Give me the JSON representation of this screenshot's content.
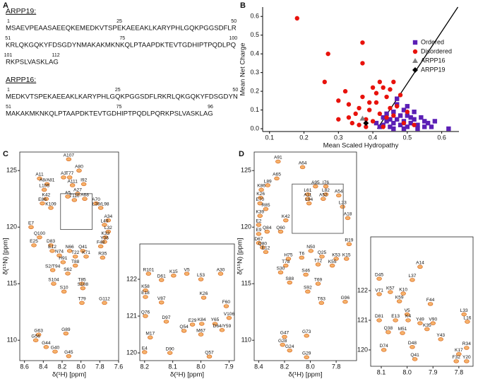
{
  "panel_a": {
    "label": "A",
    "proteins": [
      {
        "name": "ARPP19:",
        "lines": [
          {
            "sequence": "MSAEVPEAASAEEQKEMEDKVTSPEKAEEAKLKARYPHLGQKPGGSDFLR",
            "markers": [
              1,
              25,
              50
            ]
          },
          {
            "sequence": "KRLQKGQKYFDSGDYNMAKAKMKNKQLPTAAPDKTEVTGDHIPTPQDLPQ",
            "markers": [
              51,
              75,
              100
            ]
          },
          {
            "sequence": "RKPSLVASKLAG",
            "markers": [
              101,
              112
            ]
          }
        ]
      },
      {
        "name": "ARPP16:",
        "lines": [
          {
            "sequence": "MEDKVTSPEKAEEAKLKARYPHLGQKPGGSDFLRKRLQKGQKYFDSGDYN",
            "markers": [
              1,
              25,
              50
            ]
          },
          {
            "sequence": "MAKAKMKNKQLPTAAPDKTEVTGDHIPTPQDLPQRKPSLVASKLAG",
            "markers": [
              51,
              75,
              96
            ]
          }
        ]
      }
    ]
  },
  "chart_data": [
    {
      "type": "scatter",
      "label": "B",
      "x_label": "Mean Scaled Hydropathy",
      "y_label": "Mean Net Charge",
      "xlim": [
        0.08,
        0.65
      ],
      "ylim": [
        -0.015,
        0.65
      ],
      "xticks": [
        0.1,
        0.2,
        0.3,
        0.4,
        0.5,
        0.6
      ],
      "yticks": [
        {
          "value": 0,
          "label": "0.0"
        },
        0.1,
        0.2,
        0.3,
        0.4,
        0.5,
        0.6
      ],
      "legend": "right",
      "boundary_line": {
        "x": [
          0.413,
          0.647
        ],
        "y": [
          0,
          0.65
        ],
        "color": "#000000"
      },
      "series": [
        {
          "name": "Ordered",
          "color": "#5b1fb5",
          "marker": "square",
          "x": [
            0.43,
            0.44,
            0.45,
            0.46,
            0.47,
            0.48,
            0.49,
            0.5,
            0.51,
            0.52,
            0.53,
            0.54,
            0.55,
            0.56,
            0.58,
            0.62,
            0.44,
            0.46,
            0.48,
            0.5,
            0.52,
            0.47,
            0.49,
            0.51,
            0.45,
            0.42,
            0.53,
            0.57,
            0.49,
            0.46,
            0.41,
            0.47,
            0.5,
            0.43,
            0.55
          ],
          "y": [
            0.02,
            0.04,
            0.01,
            0.03,
            0.05,
            0.02,
            0.04,
            0.01,
            0.03,
            0.05,
            0.02,
            0.06,
            0.01,
            0.03,
            0.04,
            0.0,
            0.08,
            0.09,
            0.07,
            0.07,
            0.09,
            0.13,
            0.1,
            0.06,
            0.05,
            0.01,
            0.0,
            0.01,
            0.0,
            0.0,
            0.03,
            0.16,
            0.12,
            0.06,
            0.04
          ]
        },
        {
          "name": "Disordered",
          "color": "#e8120c",
          "marker": "circle",
          "x": [
            0.18,
            0.27,
            0.26,
            0.37,
            0.37,
            0.3,
            0.32,
            0.33,
            0.35,
            0.36,
            0.34,
            0.38,
            0.39,
            0.4,
            0.41,
            0.42,
            0.43,
            0.44,
            0.45,
            0.46,
            0.4,
            0.42,
            0.43,
            0.44,
            0.45,
            0.47,
            0.48,
            0.49,
            0.5,
            0.37,
            0.38,
            0.36,
            0.41,
            0.46,
            0.33,
            0.39,
            0.52,
            0.3
          ],
          "y": [
            0.59,
            0.4,
            0.25,
            0.35,
            0.46,
            0.15,
            0.2,
            0.13,
            0.08,
            0.11,
            0.03,
            0.05,
            0.1,
            0.22,
            0.14,
            0.25,
            0.22,
            0.17,
            0.21,
            0.25,
            0.04,
            0.08,
            0.01,
            0.06,
            0.11,
            0.12,
            0.18,
            0.03,
            0.09,
            0.17,
            0.01,
            0.02,
            0.19,
            0.07,
            0.06,
            0.14,
            0.02,
            0.05
          ]
        },
        {
          "name": "ARPP16",
          "color": "#808080",
          "marker": "triangle",
          "x": [
            0.37
          ],
          "y": [
            0.055
          ]
        },
        {
          "name": "ARPP19",
          "color": "#000000",
          "marker": "diamond",
          "x": [
            0.38
          ],
          "y": [
            0.03
          ]
        }
      ]
    },
    {
      "type": "spectrum",
      "label": "C",
      "x_label": "δ(¹H) [ppm]",
      "y_label": "δ(¹⁵N) [ppm]",
      "color": "#f5b26b",
      "xlim": [
        8.65,
        7.6
      ],
      "ylim": [
        108.2,
        126.64
      ],
      "xticks": [
        8.6,
        8.4,
        8.2,
        {
          "value": 8,
          "label": "8.0"
        },
        7.8,
        7.6
      ],
      "yticks": [
        110,
        115,
        120,
        125
      ],
      "peaks": {
        "labels": [
          "G45",
          "G40",
          "G44",
          "G56",
          "G63",
          "G89",
          "T79",
          "G112",
          "S10",
          "S108",
          "T85",
          "S104",
          "S62",
          "S2/T94",
          "T88",
          "H91",
          "T22",
          "K71",
          "R35",
          "N74",
          "E12",
          "N66",
          "Q41",
          "F48",
          "E25",
          "D83",
          "Y36",
          "K33",
          "Q100",
          "E7",
          "L32",
          "L49",
          "A34",
          "K109",
          "L39/L98",
          "E86",
          "A70",
          "K42",
          "T110",
          "A5",
          "A68",
          "A27",
          "L105",
          "A8/A81",
          "A111",
          "I92",
          "A11",
          "A3",
          "T77",
          "A80",
          "A107"
        ],
        "x": [
          8.13,
          8.275,
          8.37,
          8.48,
          8.45,
          8.16,
          7.99,
          7.75,
          8.18,
          7.98,
          7.99,
          8.29,
          8.14,
          8.3,
          8.06,
          8.19,
          8.06,
          7.945,
          7.77,
          8.23,
          8.305,
          8.12,
          7.98,
          7.79,
          8.5,
          8.32,
          7.75,
          7.74,
          8.44,
          8.53,
          7.71,
          7.75,
          7.71,
          8.32,
          7.79,
          8.41,
          7.84,
          8.37,
          8.07,
          8.14,
          7.96,
          8.035,
          8.39,
          8.36,
          8.09,
          7.97,
          8.44,
          8.185,
          8.12,
          8.02,
          8.13
        ],
        "y": [
          108.6,
          109.0,
          109.4,
          110.0,
          110.5,
          110.6,
          113.3,
          113.3,
          114.3,
          114.6,
          115.0,
          115.0,
          115.9,
          116.2,
          116.6,
          116.9,
          117.4,
          117.4,
          117.3,
          117.5,
          117.9,
          117.9,
          117.9,
          118.3,
          118.4,
          118.4,
          118.7,
          119.1,
          119.1,
          120.0,
          119.6,
          120.2,
          120.6,
          121.7,
          121.7,
          122.1,
          122.1,
          122.5,
          122.4,
          122.7,
          122.5,
          122.95,
          123.3,
          123.8,
          123.7,
          123.8,
          124.3,
          124.4,
          124.4,
          125.0,
          126.0
        ]
      }
    },
    {
      "type": "spectrum",
      "x_label": "δ(¹H) [ppm]",
      "color": "#f5b26b",
      "xlim": [
        8.217,
        7.881
      ],
      "ylim": [
        119.79,
        122.96
      ],
      "xticks": [
        8.2,
        8.1,
        {
          "value": 8,
          "label": "8.0"
        },
        7.9
      ],
      "yticks": [
        120,
        121,
        122
      ],
      "peaks": {
        "labels": [
          "E4",
          "D90",
          "Q57",
          "M17",
          "Q54",
          "M67",
          "D64/Y59",
          "Q76",
          "D97",
          "E29",
          "K84",
          "Y65",
          "V106",
          "F60",
          "V87",
          "E18",
          "K26",
          "K58",
          "D61",
          "K15",
          "L53",
          "R101",
          "V5",
          "A30"
        ],
        "x": [
          8.2,
          8.11,
          7.97,
          8.18,
          8.06,
          8.0,
          7.925,
          8.197,
          8.123,
          8.03,
          7.997,
          7.95,
          7.9,
          7.91,
          8.14,
          8.197,
          7.99,
          8.197,
          8.14,
          8.097,
          8.0,
          8.186,
          8.05,
          7.93
        ],
        "y": [
          120.02,
          120.0,
          119.9,
          120.42,
          120.6,
          120.5,
          120.62,
          121.0,
          120.85,
          120.77,
          120.79,
          120.79,
          120.95,
          121.27,
          121.37,
          121.52,
          121.5,
          121.7,
          121.98,
          122.1,
          122.0,
          122.15,
          122.15,
          122.15
        ]
      }
    },
    {
      "type": "spectrum",
      "label": "D",
      "x_label": "δ(¹H) [ppm]",
      "y_label": "δ(¹⁵N) [ppm]",
      "color": "#f5b26b",
      "xlim": [
        8.435,
        7.642
      ],
      "ylim": [
        108.2,
        126.64
      ],
      "xticks": [
        8.4,
        8.2,
        {
          "value": 8,
          "label": "8.0"
        },
        7.8
      ],
      "yticks": [
        110,
        115,
        120,
        125
      ],
      "peaks": {
        "labels": [
          "G29",
          "G24",
          "G28",
          "G47",
          "G73",
          "T63",
          "G96",
          "S92",
          "S88",
          "T69",
          "S46",
          "S30",
          "T72",
          "T78",
          "K55",
          "H75",
          "T6",
          "K53",
          "K15",
          "Q25",
          "E12",
          "N50",
          "Q80",
          "D67",
          "R19",
          "E9",
          "Q84",
          "Q60",
          "E2",
          "K39",
          "A18",
          "R85",
          "L23",
          "K42",
          "L94",
          "E70",
          "A11",
          "A52",
          "K26",
          "L61",
          "L82",
          "A54",
          "K86",
          "I76",
          "L89",
          "A95",
          "A65",
          "A64",
          "A91"
        ],
        "x": [
          8.029,
          8.16,
          8.215,
          8.2,
          8.029,
          7.914,
          7.73,
          8.02,
          8.16,
          7.94,
          8.035,
          8.23,
          7.94,
          8.19,
          7.83,
          8.17,
          8.067,
          7.8,
          7.72,
          7.91,
          8.345,
          7.996,
          8.37,
          8.4,
          7.7,
          8.4,
          8.335,
          8.23,
          8.4,
          8.39,
          7.71,
          8.345,
          7.75,
          8.19,
          8.01,
          8.39,
          8.02,
          7.9,
          8.385,
          8.02,
          7.88,
          7.78,
          8.38,
          7.88,
          8.33,
          7.96,
          8.26,
          8.06,
          8.25
        ],
        "y": [
          108.5,
          109.1,
          109.6,
          110.3,
          110.4,
          113.3,
          113.4,
          114.3,
          115.1,
          115.0,
          115.8,
          116.0,
          116.7,
          116.6,
          116.6,
          117.2,
          117.3,
          117.2,
          117.2,
          117.4,
          117.8,
          117.9,
          118.2,
          118.6,
          118.5,
          119.4,
          119.6,
          119.6,
          120.2,
          121.0,
          120.8,
          121.6,
          121.8,
          120.6,
          122.1,
          122.1,
          122.5,
          122.5,
          122.6,
          122.9,
          122.9,
          122.8,
          123.3,
          123.6,
          123.7,
          123.6,
          124.3,
          125.3,
          125.8
        ]
      }
    },
    {
      "type": "spectrum",
      "color": "#f5b26b",
      "xlim": [
        8.141,
        7.745
      ],
      "ylim": [
        119.45,
        123.81
      ],
      "xticks": [
        8.1,
        {
          "value": 8,
          "label": "8.0"
        },
        7.9,
        7.8
      ],
      "yticks": [
        120,
        121,
        122
      ],
      "peaks": {
        "labels": [
          "F32",
          "Y20",
          "Q41",
          "K17",
          "D74",
          "D48",
          "R34",
          "Y43",
          "Q38",
          "M51",
          "K35",
          "Y49",
          "V90",
          "L16",
          "D81",
          "E13",
          "K4",
          "V5",
          "L33",
          "F44",
          "K59",
          "V71",
          "K57",
          "K10",
          "D45",
          "L37",
          "A14"
        ],
        "x": [
          7.81,
          7.77,
          7.97,
          7.8,
          8.09,
          7.98,
          7.77,
          7.87,
          8.073,
          8.018,
          7.923,
          7.95,
          7.9,
          7.767,
          8.108,
          8.045,
          7.996,
          8.0,
          7.78,
          7.91,
          8.03,
          8.108,
          8.065,
          8.015,
          8.108,
          7.98,
          7.95
        ],
        "y": [
          119.62,
          119.62,
          119.69,
          119.86,
          120.0,
          120.1,
          120.07,
          120.36,
          120.6,
          120.57,
          120.7,
          120.9,
          120.9,
          120.95,
          121.0,
          121.0,
          121.0,
          121.2,
          121.2,
          121.55,
          121.64,
          121.88,
          121.95,
          121.9,
          122.4,
          122.36,
          122.8
        ]
      }
    }
  ]
}
